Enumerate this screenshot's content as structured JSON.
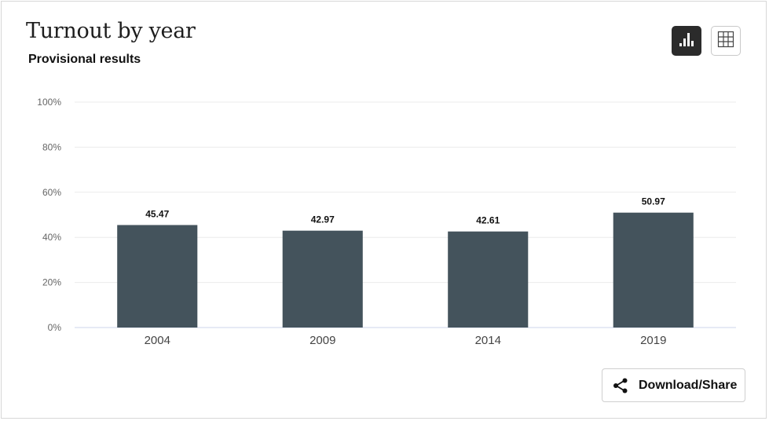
{
  "header": {
    "title": "Turnout by year",
    "subtitle": "Provisional results"
  },
  "view_toggle": {
    "active": "chart",
    "chart_icon": "bar-chart-icon",
    "table_icon": "grid-table-icon"
  },
  "chart_data": {
    "type": "bar",
    "categories": [
      "2004",
      "2009",
      "2014",
      "2019"
    ],
    "values": [
      45.47,
      42.97,
      42.61,
      50.97
    ],
    "data_labels": [
      "45.47",
      "42.97",
      "42.61",
      "50.97"
    ],
    "ylim": [
      0,
      100
    ],
    "yticks": [
      0,
      20,
      40,
      60,
      80,
      100
    ],
    "ytick_labels": [
      "0%",
      "20%",
      "40%",
      "60%",
      "80%",
      "100%"
    ],
    "grid": true,
    "bar_color": "#44535c",
    "title": "Turnout by year",
    "xlabel": "",
    "ylabel": ""
  },
  "footer": {
    "download_label": "Download/Share",
    "download_icon": "share-icon"
  },
  "colors": {
    "bar": "#44535c",
    "active_toggle": "#2b2b2b",
    "gridline": "#ebebeb",
    "baseline": "#ccd6eb"
  }
}
